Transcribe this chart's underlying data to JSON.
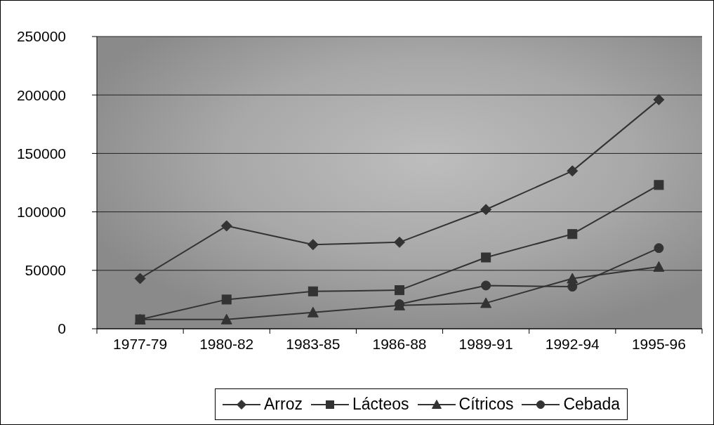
{
  "chart_data": {
    "type": "line",
    "categories": [
      "1977-79",
      "1980-82",
      "1983-85",
      "1986-88",
      "1989-91",
      "1992-94",
      "1995-96"
    ],
    "series": [
      {
        "name": "Arroz",
        "color": "#333333",
        "marker": "diamond",
        "values": [
          43000,
          88000,
          72000,
          74000,
          102000,
          135000,
          196000
        ]
      },
      {
        "name": "Lácteos",
        "color": "#333333",
        "marker": "square",
        "values": [
          8000,
          25000,
          32000,
          33000,
          61000,
          81000,
          123000
        ]
      },
      {
        "name": "Cítricos",
        "color": "#333333",
        "marker": "triangle",
        "values": [
          8000,
          8000,
          14000,
          20000,
          22000,
          43000,
          53000
        ]
      },
      {
        "name": "Cebada",
        "color": "#333333",
        "marker": "circle",
        "values": [
          null,
          null,
          null,
          21000,
          37000,
          36000,
          69000
        ]
      }
    ],
    "ylim": [
      0,
      250000
    ],
    "yticks": [
      0,
      50000,
      100000,
      150000,
      200000,
      250000
    ],
    "grid": "y",
    "legend": "bottom"
  }
}
